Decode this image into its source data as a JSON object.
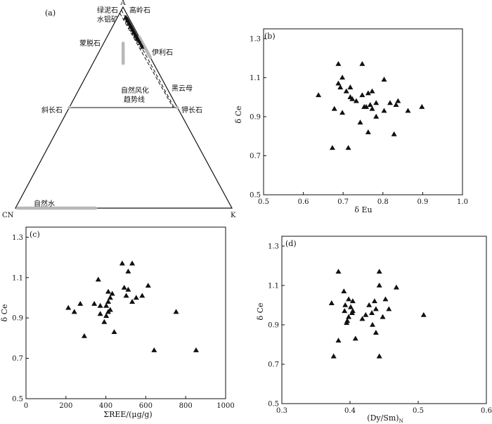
{
  "chart_data": [
    {
      "panel": "(a)",
      "type": "ternary",
      "vertices": {
        "top": "A",
        "left": "CN",
        "right": "K"
      },
      "mineral_labels": [
        {
          "text": "绿泥石",
          "A": 100,
          "CN": 0,
          "K": 0
        },
        {
          "text": "水铝矿",
          "A": 100,
          "CN": 0,
          "K": 0
        },
        {
          "text": "高岭石",
          "A": 100,
          "CN": 0,
          "K": 0
        },
        {
          "text": "蒙脱石",
          "A": 76,
          "CN": 12,
          "K": 12
        },
        {
          "text": "伊利石",
          "A": 78,
          "CN": 0,
          "K": 22
        },
        {
          "text": "黑云母",
          "A": 58,
          "CN": 0,
          "K": 42
        },
        {
          "text": "斜长石",
          "A": 50,
          "CN": 50,
          "K": 0
        },
        {
          "text": "钾长石",
          "A": 50,
          "CN": 0,
          "K": 50
        },
        {
          "text": "自然水",
          "A": 0,
          "CN": 82,
          "K": 18
        }
      ],
      "trend_label_lines": [
        "自然风化",
        "趋势线"
      ],
      "gray_bars": [
        {
          "name": "montmorillonite",
          "from": [
            0.72,
            0.14,
            0.14
          ],
          "to": [
            0.82,
            0.09,
            0.09
          ]
        },
        {
          "name": "illite",
          "from": [
            0.85,
            0.0,
            0.15
          ],
          "to": [
            0.75,
            0.0,
            0.25
          ]
        },
        {
          "name": "natural-water",
          "from": [
            0.0,
            0.99,
            0.01
          ],
          "to": [
            0.0,
            0.63,
            0.37
          ]
        }
      ],
      "tie_line": {
        "from": [
          0.5,
          0.5,
          0.0
        ],
        "to": [
          0.5,
          0.0,
          0.5
        ]
      },
      "trend_lines": [
        {
          "from": [
            0.985,
            0.015,
            0.0
          ],
          "to": [
            0.5,
            0.015,
            0.485
          ]
        },
        {
          "from": [
            0.97,
            0.03,
            0.0
          ],
          "to": [
            0.5,
            0.02,
            0.48
          ]
        }
      ],
      "points": [
        [
          0.95,
          0.012,
          0.038
        ],
        [
          0.945,
          0.015,
          0.04
        ],
        [
          0.94,
          0.01,
          0.05
        ],
        [
          0.935,
          0.012,
          0.053
        ],
        [
          0.93,
          0.015,
          0.055
        ],
        [
          0.925,
          0.01,
          0.065
        ],
        [
          0.92,
          0.012,
          0.068
        ],
        [
          0.915,
          0.015,
          0.07
        ],
        [
          0.91,
          0.01,
          0.08
        ],
        [
          0.905,
          0.012,
          0.083
        ],
        [
          0.9,
          0.015,
          0.085
        ],
        [
          0.895,
          0.01,
          0.095
        ],
        [
          0.89,
          0.012,
          0.098
        ],
        [
          0.885,
          0.015,
          0.1
        ],
        [
          0.88,
          0.01,
          0.11
        ],
        [
          0.875,
          0.012,
          0.113
        ],
        [
          0.87,
          0.015,
          0.115
        ],
        [
          0.865,
          0.01,
          0.125
        ],
        [
          0.86,
          0.012,
          0.128
        ],
        [
          0.855,
          0.015,
          0.13
        ],
        [
          0.85,
          0.01,
          0.14
        ],
        [
          0.845,
          0.012,
          0.143
        ],
        [
          0.84,
          0.015,
          0.145
        ],
        [
          0.835,
          0.012,
          0.153
        ],
        [
          0.83,
          0.01,
          0.16
        ],
        [
          0.82,
          0.012,
          0.168
        ],
        [
          0.81,
          0.01,
          0.18
        ],
        [
          0.8,
          0.012,
          0.188
        ]
      ]
    },
    {
      "panel": "(b)",
      "type": "scatter",
      "xlabel": "δ Eu",
      "ylabel": "δ Ce",
      "xlim": [
        0.5,
        1.0
      ],
      "ylim": [
        0.5,
        1.35
      ],
      "xticks": [
        0.5,
        0.6,
        0.7,
        0.8,
        0.9,
        1.0
      ],
      "yticks": [
        0.5,
        0.7,
        0.9,
        1.1,
        1.3
      ],
      "x": [
        0.688,
        0.748,
        0.688,
        0.698,
        0.718,
        0.708,
        0.803,
        0.638,
        0.718,
        0.748,
        0.763,
        0.693,
        0.723,
        0.773,
        0.783,
        0.733,
        0.768,
        0.818,
        0.753,
        0.898,
        0.838,
        0.773,
        0.678,
        0.803,
        0.698,
        0.743,
        0.763,
        0.783,
        0.828,
        0.863,
        0.673,
        0.713,
        0.758,
        0.833
      ],
      "y": [
        1.17,
        1.17,
        1.07,
        1.1,
        1.05,
        1.03,
        1.09,
        1.01,
        1.0,
        1.01,
        1.02,
        1.05,
        0.99,
        1.03,
        0.97,
        0.98,
        0.96,
        0.97,
        0.95,
        0.95,
        0.98,
        0.94,
        0.94,
        0.93,
        0.92,
        0.87,
        0.82,
        0.9,
        0.81,
        0.93,
        0.74,
        0.74,
        0.95,
        0.96
      ]
    },
    {
      "panel": "(c)",
      "type": "scatter",
      "xlabel": "ΣREE/(μg/g)",
      "ylabel": "δ Ce",
      "xlim": [
        0,
        1000
      ],
      "ylim": [
        0.5,
        1.35
      ],
      "xticks": [
        0,
        200,
        400,
        600,
        800,
        1000
      ],
      "yticks": [
        0.5,
        0.7,
        0.9,
        1.1,
        1.3
      ],
      "x": [
        482,
        532,
        362,
        512,
        492,
        412,
        422,
        432,
        612,
        212,
        242,
        272,
        372,
        402,
        412,
        422,
        342,
        502,
        552,
        532,
        512,
        582,
        412,
        402,
        292,
        752,
        642,
        852,
        392,
        442,
        372
      ],
      "y": [
        1.17,
        1.17,
        1.09,
        1.13,
        1.05,
        1.03,
        1.0,
        1.02,
        1.06,
        0.95,
        0.93,
        0.97,
        0.96,
        0.96,
        0.98,
        0.94,
        0.97,
        1.01,
        1.0,
        0.98,
        1.04,
        1.01,
        0.93,
        0.91,
        0.81,
        0.93,
        0.74,
        0.74,
        0.88,
        0.83,
        0.92
      ]
    },
    {
      "panel": "(d)",
      "type": "scatter",
      "xlabel": "(Dy/Sm)",
      "xlabel_subscript": "N",
      "ylabel": "δ Ce",
      "xlim": [
        0.3,
        0.6
      ],
      "ylim": [
        0.5,
        1.35
      ],
      "xticks": [
        0.3,
        0.4,
        0.5,
        0.6
      ],
      "yticks": [
        0.5,
        0.7,
        0.9,
        1.1,
        1.3
      ],
      "x": [
        0.383,
        0.443,
        0.443,
        0.391,
        0.398,
        0.404,
        0.373,
        0.468,
        0.436,
        0.428,
        0.452,
        0.393,
        0.401,
        0.438,
        0.403,
        0.423,
        0.432,
        0.448,
        0.457,
        0.392,
        0.404,
        0.398,
        0.395,
        0.418,
        0.433,
        0.438,
        0.508,
        0.383,
        0.376,
        0.443,
        0.408,
        0.396
      ],
      "y": [
        1.17,
        1.17,
        1.1,
        1.07,
        1.03,
        1.02,
        1.01,
        1.09,
        1.02,
        1.0,
        1.03,
        1.0,
        0.99,
        0.98,
        0.96,
        0.95,
        0.96,
        0.94,
        0.98,
        0.97,
        0.97,
        0.94,
        0.91,
        0.93,
        0.9,
        0.86,
        0.95,
        0.82,
        0.74,
        0.74,
        0.83,
        0.92
      ]
    }
  ]
}
